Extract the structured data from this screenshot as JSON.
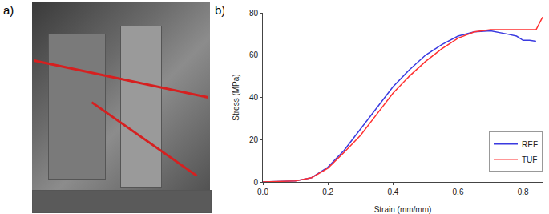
{
  "panels": {
    "a": {
      "label": "a)"
    },
    "b": {
      "label": "b)"
    }
  },
  "chart_data": {
    "type": "line",
    "x_label": "Strain (mm/mm)",
    "y_label": "Stress (MPa)",
    "xlim": [
      0,
      0.86
    ],
    "ylim": [
      0,
      80
    ],
    "xticks": [
      {
        "value": 0,
        "label": "0.0"
      },
      0.2,
      0.4,
      0.6,
      0.8
    ],
    "yticks": [
      0,
      20,
      40,
      60,
      80
    ],
    "grid": false,
    "legend": "bottom right",
    "series": [
      {
        "name": "REF",
        "color": "#3a3ae0",
        "x": [
          0,
          0.1,
          0.15,
          0.2,
          0.25,
          0.3,
          0.35,
          0.4,
          0.45,
          0.5,
          0.55,
          0.6,
          0.65,
          0.7,
          0.75,
          0.78,
          0.8,
          0.82,
          0.84
        ],
        "values": [
          0,
          0.5,
          2,
          7,
          15,
          25,
          35,
          45,
          53,
          60,
          65,
          69,
          71,
          71.5,
          70,
          69,
          67,
          67,
          66.5
        ]
      },
      {
        "name": "TUF",
        "color": "#ff3030",
        "x": [
          0,
          0.1,
          0.15,
          0.2,
          0.25,
          0.3,
          0.35,
          0.4,
          0.45,
          0.5,
          0.55,
          0.6,
          0.65,
          0.7,
          0.75,
          0.8,
          0.84,
          0.85,
          0.86
        ],
        "values": [
          0,
          0.5,
          2,
          6.5,
          14,
          22,
          32,
          42,
          50,
          57,
          63,
          68,
          71,
          72,
          72,
          72,
          72,
          75,
          78
        ]
      }
    ]
  }
}
